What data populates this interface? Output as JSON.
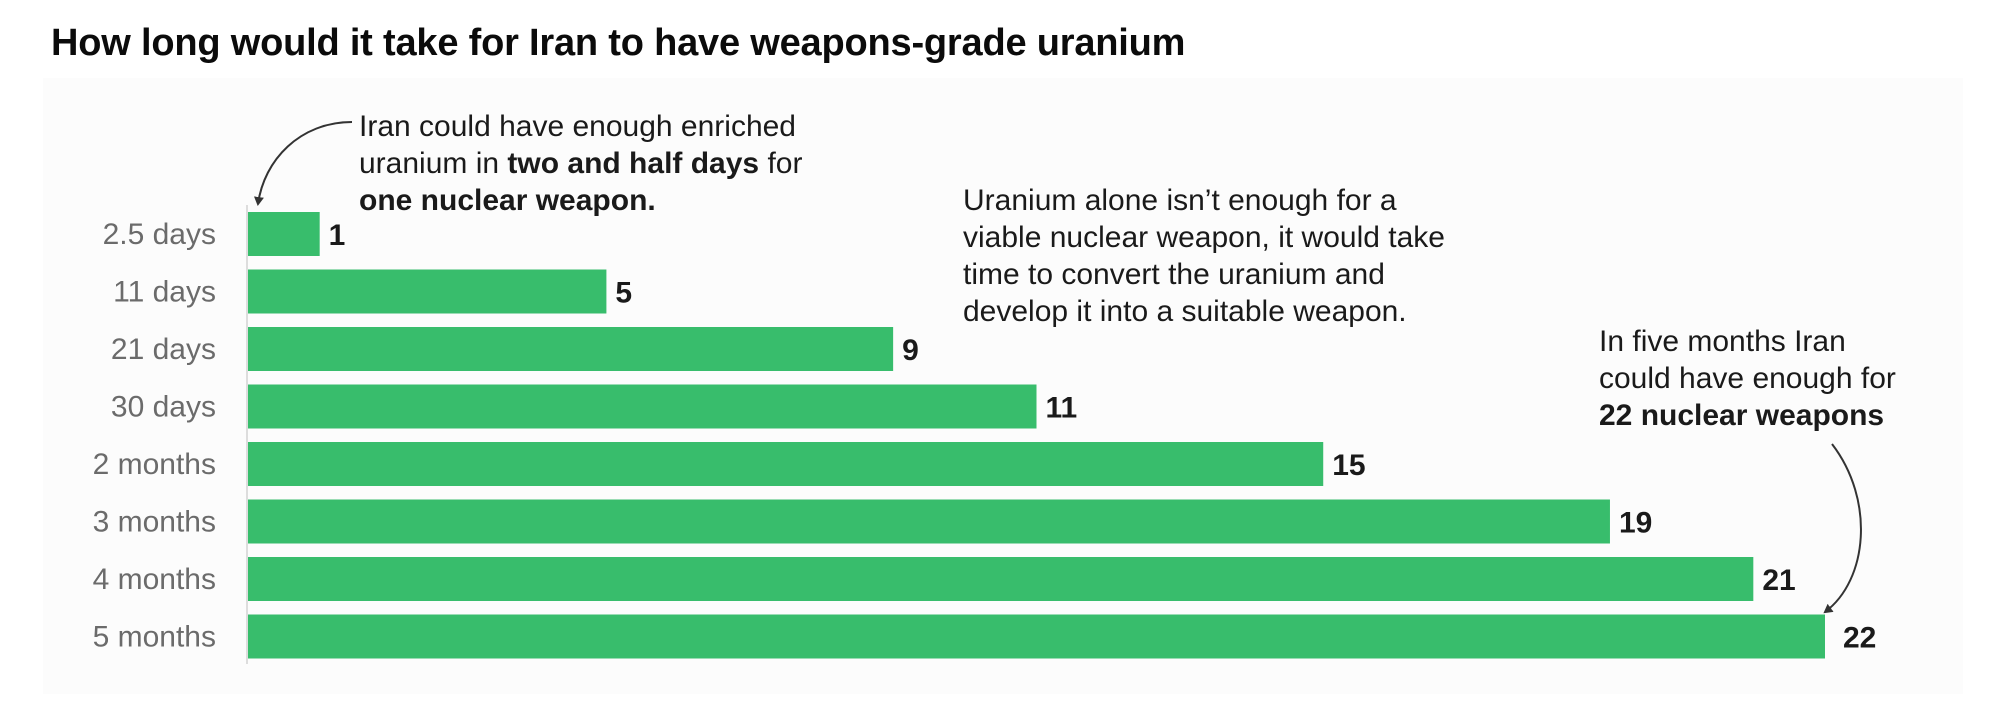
{
  "title": "How long would it take for Iran to have weapons-grade uranium",
  "annotations": {
    "first": {
      "line1": "Iran could have enough enriched",
      "line2_pre": "uranium in ",
      "line2_bold": "two and half days",
      "line2_post": " for",
      "line3_bold": "one nuclear weapon."
    },
    "middle": {
      "line1": "Uranium alone isn’t enough for a",
      "line2": "viable nuclear weapon, it would take",
      "line3": "time to convert the uranium and",
      "line4": "develop it into a suitable weapon."
    },
    "last": {
      "line1": "In five months Iran",
      "line2": "could have enough for",
      "line3_bold": "22 nuclear weapons"
    }
  },
  "colors": {
    "bar": "#38bd6c",
    "axis_line": "#dddddd",
    "arrow": "#333333"
  },
  "chart_data": {
    "type": "bar",
    "orientation": "horizontal",
    "title": "How long would it take for Iran to have weapons-grade uranium",
    "categories": [
      "2.5 days",
      "11 days",
      "21 days",
      "30 days",
      "2 months",
      "3 months",
      "4 months",
      "5 months"
    ],
    "values": [
      1,
      5,
      9,
      11,
      15,
      19,
      21,
      22
    ],
    "xlabel": "",
    "ylabel": "",
    "xlim": [
      0,
      22
    ],
    "grid": false,
    "legend": "none"
  }
}
